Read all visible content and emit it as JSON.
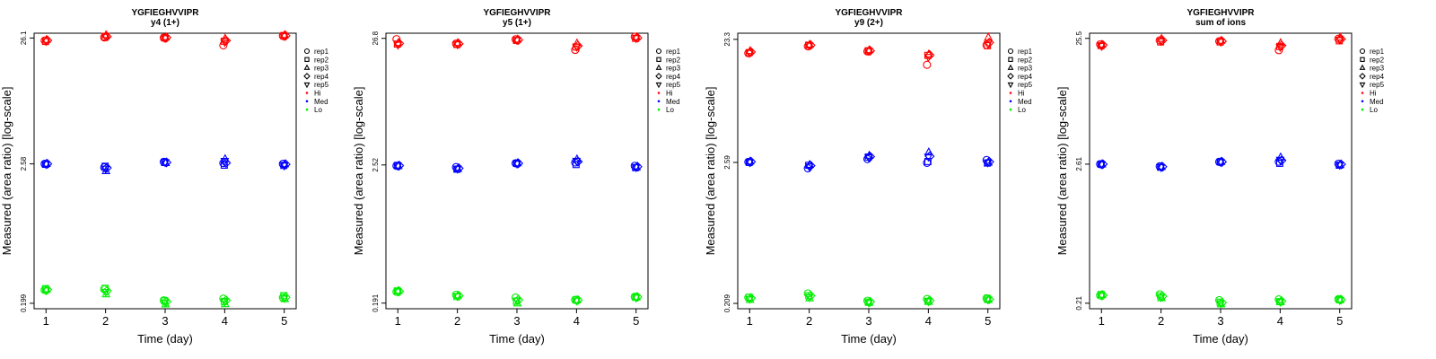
{
  "chart_data": [
    {
      "type": "scatter",
      "title": "YGFIEGHVVIPR",
      "subtitle": "y4 (1+)",
      "xlabel": "Time (day)",
      "ylabel": "Measured (area ratio) [log-scale]",
      "x": [
        1,
        2,
        3,
        4,
        5
      ],
      "y_scale": "log",
      "y_ticks": [
        "26.1",
        "2.58",
        "0.199"
      ],
      "ylim": [
        0.18,
        28.5
      ],
      "xlim": [
        0.8,
        5.2
      ],
      "legend": [
        "rep1",
        "rep2",
        "rep3",
        "rep4",
        "rep5",
        "Hi",
        "Med",
        "Lo"
      ],
      "legend_position": "right",
      "series": [
        {
          "name": "Hi",
          "color": "#ff0000",
          "reps": [
            [
              24.9,
              26.4,
              26.2,
              22.8,
              27.1
            ],
            [
              24.5,
              26.6,
              26.2,
              24.6,
              27.3
            ],
            [
              25.2,
              27.5,
              26.5,
              25.8,
              27.6
            ],
            [
              25.0,
              26.8,
              26.3,
              24.9,
              27.2
            ],
            [
              24.6,
              27.2,
              26.0,
              24.2,
              27.0
            ]
          ]
        },
        {
          "name": "Med",
          "color": "#0000ff",
          "reps": [
            [
              2.58,
              2.42,
              2.68,
              2.62,
              2.58
            ],
            [
              2.56,
              2.47,
              2.66,
              2.52,
              2.51
            ],
            [
              2.58,
              2.26,
              2.62,
              2.82,
              2.56
            ],
            [
              2.58,
              2.4,
              2.65,
              2.63,
              2.56
            ],
            [
              2.57,
              2.36,
              2.66,
              2.72,
              2.5
            ]
          ]
        },
        {
          "name": "Lo",
          "color": "#00ee00",
          "reps": [
            [
              0.254,
              0.258,
              0.21,
              0.217,
              0.221
            ],
            [
              0.26,
              0.262,
              0.208,
              0.206,
              0.229
            ],
            [
              0.255,
              0.235,
              0.195,
              0.196,
              0.215
            ],
            [
              0.256,
              0.25,
              0.205,
              0.21,
              0.222
            ],
            [
              0.252,
              0.245,
              0.202,
              0.205,
              0.219
            ]
          ]
        }
      ]
    },
    {
      "type": "scatter",
      "title": "YGFIEGHVVIPR",
      "subtitle": "y5 (1+)",
      "xlabel": "Time (day)",
      "ylabel": "Measured (area ratio) [log-scale]",
      "x": [
        1,
        2,
        3,
        4,
        5
      ],
      "y_scale": "log",
      "y_ticks": [
        "26.8",
        "2.52",
        "0.191"
      ],
      "ylim": [
        0.172,
        29.5
      ],
      "xlim": [
        0.8,
        5.2
      ],
      "legend": [
        "rep1",
        "rep2",
        "rep3",
        "rep4",
        "rep5",
        "Hi",
        "Med",
        "Lo"
      ],
      "legend_position": "right",
      "series": [
        {
          "name": "Hi",
          "color": "#ff0000",
          "reps": [
            [
              26.4,
              24.3,
              26.3,
              21.6,
              27.6
            ],
            [
              24.1,
              23.9,
              25.8,
              22.8,
              26.8
            ],
            [
              24.6,
              24.6,
              26.2,
              24.4,
              27.4
            ],
            [
              24.4,
              24.2,
              26.0,
              23.3,
              27.1
            ],
            [
              23.8,
              24.0,
              25.9,
              22.9,
              26.9
            ]
          ]
        },
        {
          "name": "Med",
          "color": "#0000ff",
          "reps": [
            [
              2.48,
              2.42,
              2.6,
              2.64,
              2.48
            ],
            [
              2.5,
              2.33,
              2.6,
              2.54,
              2.4
            ],
            [
              2.47,
              2.34,
              2.6,
              2.8,
              2.41
            ],
            [
              2.49,
              2.37,
              2.6,
              2.68,
              2.44
            ],
            [
              2.48,
              2.35,
              2.58,
              2.72,
              2.42
            ]
          ]
        },
        {
          "name": "Lo",
          "color": "#00ee00",
          "reps": [
            [
              0.236,
              0.223,
              0.212,
              0.203,
              0.215
            ],
            [
              0.24,
              0.216,
              0.198,
              0.203,
              0.213
            ],
            [
              0.24,
              0.22,
              0.19,
              0.201,
              0.213
            ],
            [
              0.238,
              0.219,
              0.203,
              0.202,
              0.214
            ],
            [
              0.237,
              0.217,
              0.2,
              0.2,
              0.212
            ]
          ]
        }
      ]
    },
    {
      "type": "scatter",
      "title": "YGFIEGHVVIPR",
      "subtitle": "y9 (2+)",
      "xlabel": "Time (day)",
      "ylabel": "Measured (area ratio) [log-scale]",
      "x": [
        1,
        2,
        3,
        4,
        5
      ],
      "y_scale": "log",
      "y_ticks": [
        "23.3",
        "2.59",
        "0.209"
      ],
      "ylim": [
        0.19,
        26.0
      ],
      "xlim": [
        0.8,
        5.2
      ],
      "legend": [
        "rep1",
        "rep2",
        "rep3",
        "rep4",
        "rep5",
        "Hi",
        "Med",
        "Lo"
      ],
      "legend_position": "right",
      "series": [
        {
          "name": "Hi",
          "color": "#ff0000",
          "reps": [
            [
              18.2,
              20.6,
              18.8,
              14.8,
              21.0
            ],
            [
              18.4,
              21.0,
              19.0,
              17.5,
              20.8
            ],
            [
              18.9,
              21.2,
              19.2,
              17.8,
              24.1
            ],
            [
              18.6,
              21.0,
              19.0,
              17.6,
              22.0
            ],
            [
              18.3,
              20.9,
              18.9,
              17.0,
              21.5
            ]
          ]
        },
        {
          "name": "Med",
          "color": "#0000ff",
          "reps": [
            [
              2.61,
              2.33,
              2.75,
              2.57,
              2.7
            ],
            [
              2.59,
              2.46,
              2.85,
              2.63,
              2.56
            ],
            [
              2.63,
              2.48,
              2.92,
              3.1,
              2.58
            ],
            [
              2.62,
              2.44,
              2.87,
              2.89,
              2.62
            ],
            [
              2.6,
              2.41,
              2.84,
              2.87,
              2.59
            ]
          ]
        },
        {
          "name": "Lo",
          "color": "#00ee00",
          "reps": [
            [
              0.232,
              0.25,
              0.219,
              0.226,
              0.229
            ],
            [
              0.233,
              0.24,
              0.214,
              0.217,
              0.228
            ],
            [
              0.223,
              0.229,
              0.211,
              0.215,
              0.222
            ],
            [
              0.23,
              0.24,
              0.215,
              0.22,
              0.225
            ],
            [
              0.226,
              0.234,
              0.212,
              0.217,
              0.224
            ]
          ]
        }
      ]
    },
    {
      "type": "scatter",
      "title": "YGFIEGHVVIPR",
      "subtitle": "sum of ions",
      "xlabel": "Time (day)",
      "ylabel": "Measured (area ratio) [log-scale]",
      "x": [
        1,
        2,
        3,
        4,
        5
      ],
      "y_scale": "log",
      "y_ticks": [
        "25.5",
        "2.61",
        "0.21"
      ],
      "ylim": [
        0.19,
        28.0
      ],
      "xlim": [
        0.8,
        5.2
      ],
      "legend": [
        "rep1",
        "rep2",
        "rep3",
        "rep4",
        "rep5",
        "Hi",
        "Med",
        "Lo"
      ],
      "legend_position": "right",
      "series": [
        {
          "name": "Hi",
          "color": "#ff0000",
          "reps": [
            [
              22.9,
              24.6,
              24.2,
              20.6,
              25.3
            ],
            [
              22.4,
              23.9,
              23.9,
              22.0,
              24.4
            ],
            [
              22.7,
              25.3,
              24.4,
              23.4,
              25.9
            ],
            [
              22.6,
              24.6,
              24.2,
              22.4,
              25.2
            ],
            [
              22.2,
              24.3,
              24.0,
              21.8,
              24.9
            ]
          ]
        },
        {
          "name": "Med",
          "color": "#0000ff",
          "reps": [
            [
              2.61,
              2.51,
              2.72,
              2.73,
              2.63
            ],
            [
              2.61,
              2.47,
              2.72,
              2.65,
              2.56
            ],
            [
              2.6,
              2.48,
              2.72,
              2.95,
              2.57
            ],
            [
              2.61,
              2.49,
              2.72,
              2.79,
              2.6
            ],
            [
              2.6,
              2.47,
              2.71,
              2.82,
              2.58
            ]
          ]
        },
        {
          "name": "Lo",
          "color": "#00ee00",
          "reps": [
            [
              0.242,
              0.247,
              0.222,
              0.225,
              0.226
            ],
            [
              0.246,
              0.24,
              0.214,
              0.216,
              0.224
            ],
            [
              0.244,
              0.23,
              0.206,
              0.214,
              0.222
            ],
            [
              0.243,
              0.238,
              0.212,
              0.218,
              0.224
            ],
            [
              0.241,
              0.234,
              0.21,
              0.215,
              0.222
            ]
          ]
        }
      ]
    }
  ]
}
